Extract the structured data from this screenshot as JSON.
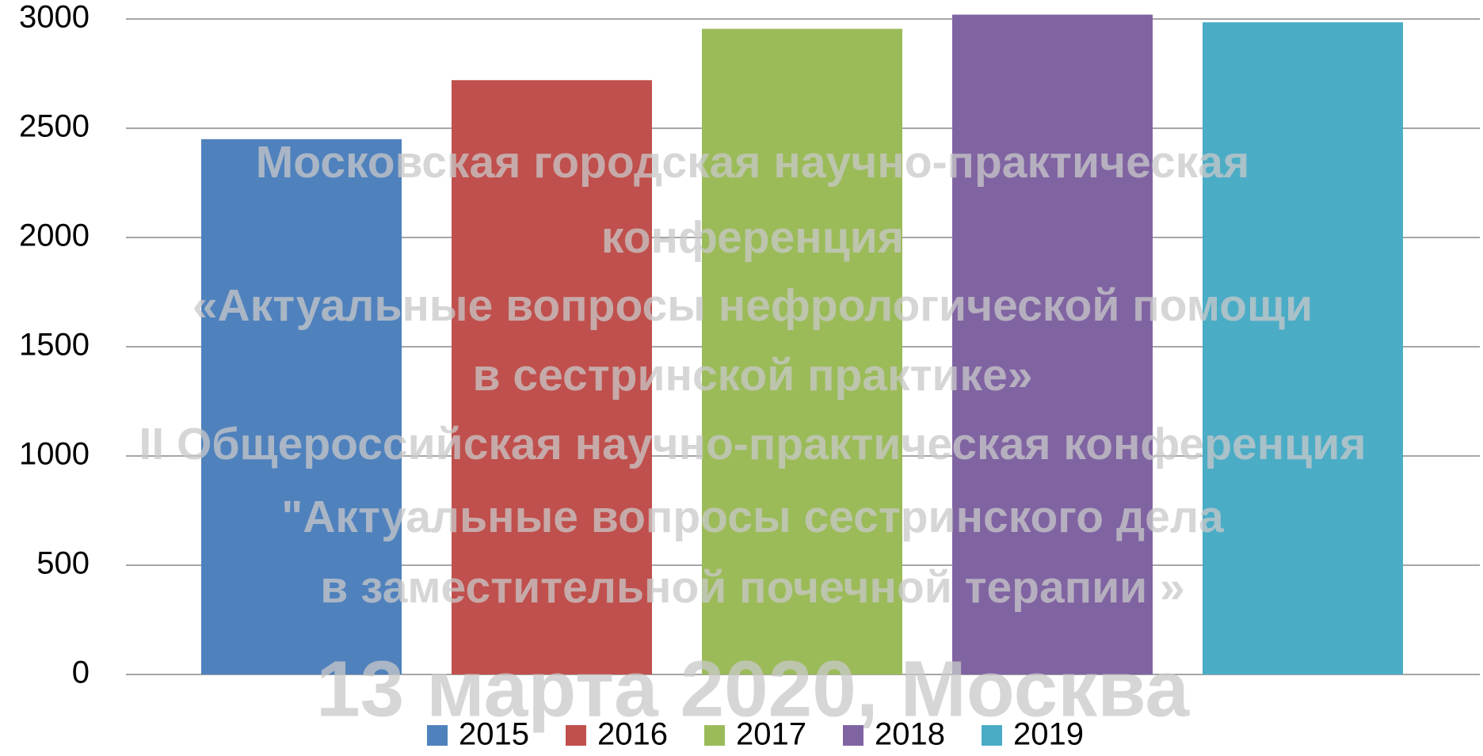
{
  "chart_data": {
    "type": "bar",
    "categories": [
      null
    ],
    "series": [
      {
        "name": "2015",
        "color": "#4f81bd",
        "values": [
          2450
        ]
      },
      {
        "name": "2016",
        "color": "#c0504d",
        "values": [
          2720
        ]
      },
      {
        "name": "2017",
        "color": "#9bbb59",
        "values": [
          2955
        ]
      },
      {
        "name": "2018",
        "color": "#8064a2",
        "values": [
          3020
        ]
      },
      {
        "name": "2019",
        "color": "#4bacc6",
        "values": [
          2985
        ]
      }
    ],
    "ylim": [
      0,
      3000
    ],
    "yticks": [
      0,
      500,
      1000,
      1500,
      2000,
      2500,
      3000
    ],
    "grid": true,
    "legend": "bottom",
    "watermark": [
      "Московская городская научно-практическая",
      "конференция",
      "«Актуальные вопросы  нефрологической помощи",
      "в сестринской практике»",
      "II Общероссийская научно-практическая конференция",
      "\"Актуальные вопросы сестринского дела",
      "в заместительной почечной терапии »",
      "13 марта 2020, Москва"
    ]
  }
}
